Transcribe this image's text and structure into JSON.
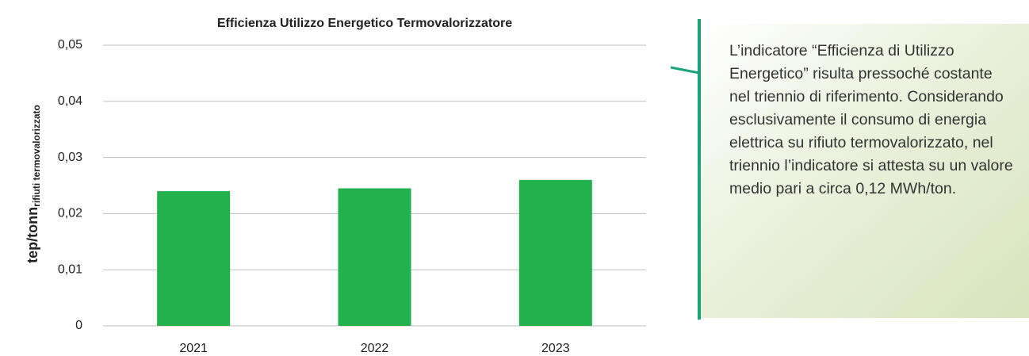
{
  "chart_data": {
    "type": "bar",
    "title": "Efficienza Utilizzo Energetico Termovalorizzatore",
    "y_label": "tep/tonn",
    "y_label_sub": "rifiuti termovalorizzato",
    "categories": [
      "2021",
      "2022",
      "2023"
    ],
    "values": [
      0.024,
      0.0245,
      0.026
    ],
    "color": "#22b14c",
    "ylim": [
      0,
      0.05
    ],
    "yticks": [
      0,
      {
        "value": 0.01,
        "label": "0,01"
      },
      {
        "value": 0.02,
        "label": "0,02"
      },
      {
        "value": 0.03,
        "label": "0,03"
      },
      {
        "value": 0.04,
        "label": "0,04"
      },
      {
        "value": 0.05,
        "label": "0,05"
      }
    ],
    "grid": true
  },
  "note": {
    "text": "L’indicatore “Efficienza di Utilizzo Energetico” risulta pressoché costante nel triennio di riferimento. Considerando esclusivamente il consumo di energia elettrica su rifiuto termovalorizzato, nel triennio l’indicatore si attesta su un valore medio pari a circa 0,12 MWh/ton."
  }
}
